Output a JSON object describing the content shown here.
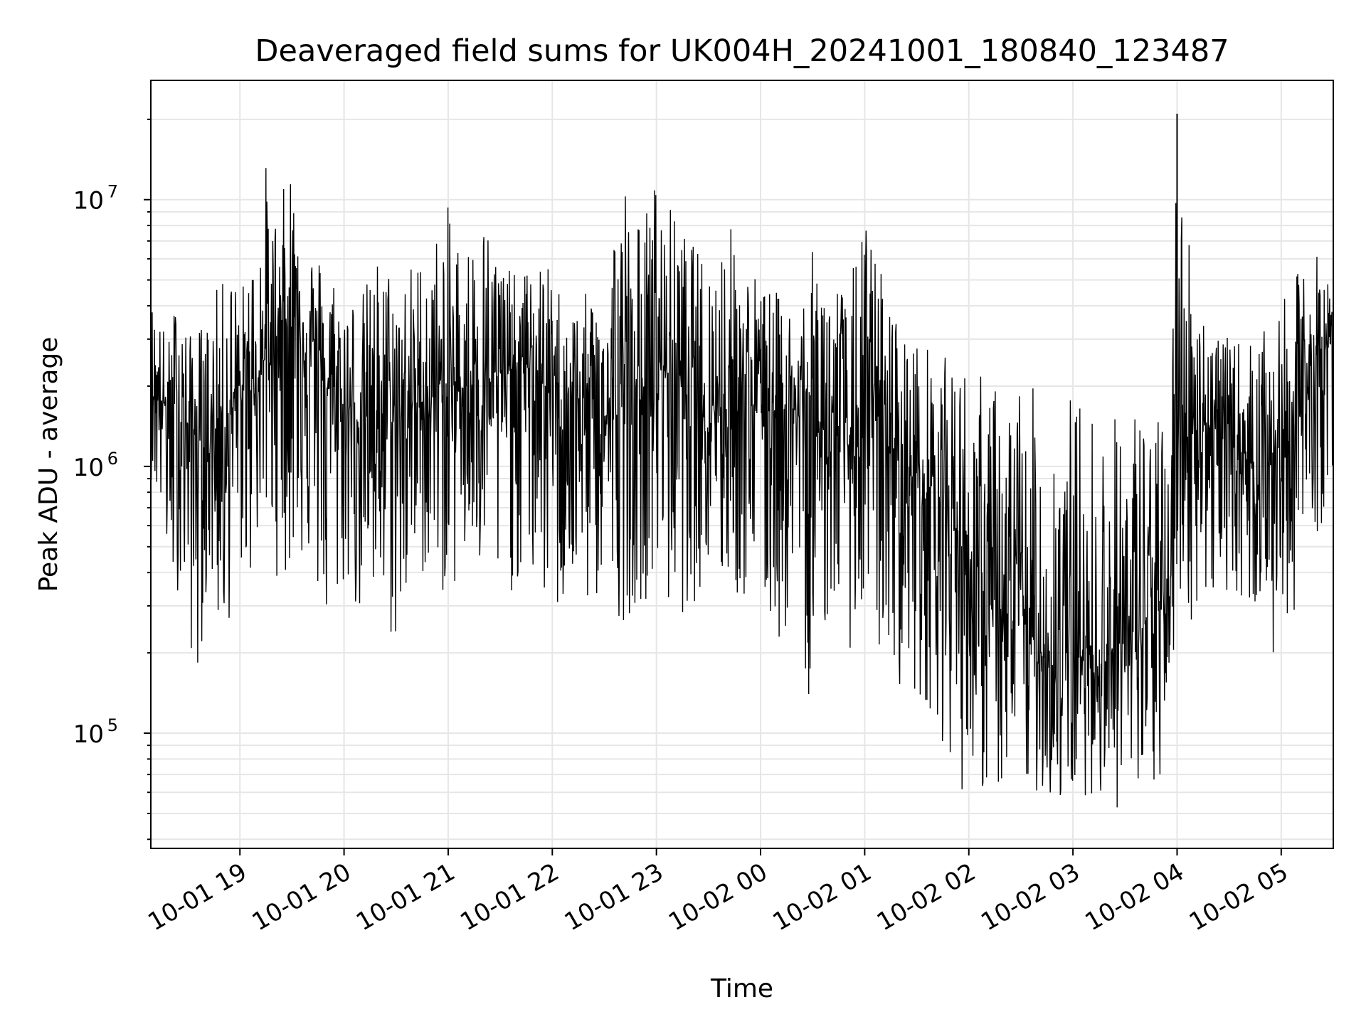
{
  "chart_data": {
    "type": "line",
    "title": "Deaveraged field sums for UK004H_20241001_180840_123487",
    "xlabel": "Time",
    "ylabel": "Peak ADU - average",
    "y_scale": "log",
    "ylim": [
      37000,
      28000000
    ],
    "xlim": [
      "2024-10-01 18:08:40",
      "2024-10-02 05:30:00"
    ],
    "grid": true,
    "line_color": "#000000",
    "grid_color": "#e6e6e6",
    "x_ticks": [
      "10-01 19",
      "10-01 20",
      "10-01 21",
      "10-01 22",
      "10-01 23",
      "10-02 00",
      "10-02 01",
      "10-02 02",
      "10-02 03",
      "10-02 04",
      "10-02 05"
    ],
    "y_ticks": [
      {
        "value": 100000,
        "mantissa": "10",
        "exp": "5"
      },
      {
        "value": 1000000,
        "mantissa": "10",
        "exp": "6"
      },
      {
        "value": 10000000,
        "mantissa": "10",
        "exp": "7"
      }
    ],
    "series": [
      {
        "style": "noisy envelope sampled every ~5 min (band center and min/max excursions)",
        "x": [
          "2024-10-01 18:08:40",
          "2024-10-01 18:15",
          "2024-10-01 18:20",
          "2024-10-01 18:25",
          "2024-10-01 18:30",
          "2024-10-01 18:35",
          "2024-10-01 18:40",
          "2024-10-01 18:45",
          "2024-10-01 18:50",
          "2024-10-01 18:55",
          "2024-10-01 19:00",
          "2024-10-01 19:05",
          "2024-10-01 19:10",
          "2024-10-01 19:15",
          "2024-10-01 19:20",
          "2024-10-01 19:25",
          "2024-10-01 19:30",
          "2024-10-01 19:35",
          "2024-10-01 19:40",
          "2024-10-01 19:45",
          "2024-10-01 19:50",
          "2024-10-01 19:55",
          "2024-10-01 20:00",
          "2024-10-01 20:10",
          "2024-10-01 20:20",
          "2024-10-01 20:30",
          "2024-10-01 20:40",
          "2024-10-01 20:50",
          "2024-10-01 21:00",
          "2024-10-01 21:10",
          "2024-10-01 21:20",
          "2024-10-01 21:30",
          "2024-10-01 21:40",
          "2024-10-01 21:50",
          "2024-10-01 22:00",
          "2024-10-01 22:10",
          "2024-10-01 22:20",
          "2024-10-01 22:30",
          "2024-10-01 22:40",
          "2024-10-01 22:50",
          "2024-10-01 23:00",
          "2024-10-01 23:10",
          "2024-10-01 23:20",
          "2024-10-01 23:30",
          "2024-10-01 23:40",
          "2024-10-01 23:50",
          "2024-10-02 00:00",
          "2024-10-02 00:10",
          "2024-10-02 00:20",
          "2024-10-02 00:30",
          "2024-10-02 00:40",
          "2024-10-02 00:50",
          "2024-10-02 01:00",
          "2024-10-02 01:10",
          "2024-10-02 01:20",
          "2024-10-02 01:30",
          "2024-10-02 01:40",
          "2024-10-02 01:50",
          "2024-10-02 02:00",
          "2024-10-02 02:10",
          "2024-10-02 02:20",
          "2024-10-02 02:30",
          "2024-10-02 02:40",
          "2024-10-02 02:50",
          "2024-10-02 03:00",
          "2024-10-02 03:10",
          "2024-10-02 03:20",
          "2024-10-02 03:30",
          "2024-10-02 03:40",
          "2024-10-02 03:50",
          "2024-10-02 03:55",
          "2024-10-02 04:00",
          "2024-10-02 04:10",
          "2024-10-02 04:20",
          "2024-10-02 04:30",
          "2024-10-02 04:40",
          "2024-10-02 04:50",
          "2024-10-02 05:00",
          "2024-10-02 05:10",
          "2024-10-02 05:20",
          "2024-10-02 05:30"
        ],
        "center": [
          2000000,
          1800000,
          1500000,
          1600000,
          1400000,
          1300000,
          1200000,
          1300000,
          1500000,
          1600000,
          1800000,
          2000000,
          2200000,
          2600000,
          3000000,
          3500000,
          3800000,
          3500000,
          3000000,
          2500000,
          2000000,
          1800000,
          1600000,
          1500000,
          1600000,
          1500000,
          1700000,
          1800000,
          1900000,
          2000000,
          2100000,
          2200000,
          2400000,
          2300000,
          1800000,
          1700000,
          1600000,
          1500000,
          1600000,
          1700000,
          2500000,
          2300000,
          2000000,
          1800000,
          1700000,
          1700000,
          1800000,
          1700000,
          1600000,
          1300000,
          1500000,
          1200000,
          1300000,
          1600000,
          1000000,
          900000,
          800000,
          700000,
          400000,
          300000,
          250000,
          300000,
          200000,
          180000,
          200000,
          180000,
          200000,
          220000,
          250000,
          300000,
          260000,
          1500000,
          1600000,
          1400000,
          1200000,
          1100000,
          1000000,
          1200000,
          1500000,
          2500000,
          3000000
        ],
        "min": [
          900000,
          600000,
          300000,
          350000,
          250000,
          130000,
          300000,
          350000,
          160000,
          300000,
          400000,
          350000,
          500000,
          600000,
          400000,
          350000,
          400000,
          450000,
          350000,
          300000,
          200000,
          250000,
          350000,
          250000,
          250000,
          200000,
          350000,
          400000,
          300000,
          400000,
          350000,
          300000,
          350000,
          350000,
          250000,
          300000,
          280000,
          320000,
          260000,
          300000,
          350000,
          250000,
          300000,
          350000,
          330000,
          300000,
          300000,
          200000,
          280000,
          110000,
          300000,
          200000,
          250000,
          180000,
          150000,
          130000,
          120000,
          70000,
          55000,
          60000,
          58000,
          55000,
          60000,
          52000,
          55000,
          60000,
          50000,
          52000,
          47000,
          60000,
          90000,
          300000,
          250000,
          300000,
          350000,
          280000,
          300000,
          110000,
          400000,
          500000,
          900000
        ],
        "max": [
          4500000,
          3500000,
          3000000,
          6300000,
          3000000,
          3500000,
          3500000,
          4500000,
          5000000,
          6000000,
          4500000,
          6000000,
          7500000,
          14000000,
          9000000,
          11000000,
          15000000,
          9000000,
          7000000,
          6500000,
          6000000,
          5500000,
          5000000,
          4500000,
          6500000,
          5500000,
          6000000,
          7000000,
          9500000,
          7000000,
          9300000,
          6500000,
          5000000,
          6000000,
          5500000,
          4000000,
          4500000,
          5500000,
          14000000,
          8500000,
          12500000,
          9000000,
          7000000,
          6000000,
          9000000,
          6500000,
          5000000,
          4500000,
          4000000,
          6500000,
          6000000,
          4500000,
          9000000,
          5500000,
          3500000,
          3000000,
          2800000,
          2500000,
          2500000,
          2200000,
          2000000,
          2200000,
          1900000,
          1800000,
          2000000,
          1700000,
          1500000,
          1800000,
          1800000,
          1500000,
          1300000,
          21000000,
          5000000,
          3500000,
          3000000,
          3000000,
          3200000,
          4000000,
          5500000,
          6500000,
          4500000
        ]
      }
    ]
  }
}
